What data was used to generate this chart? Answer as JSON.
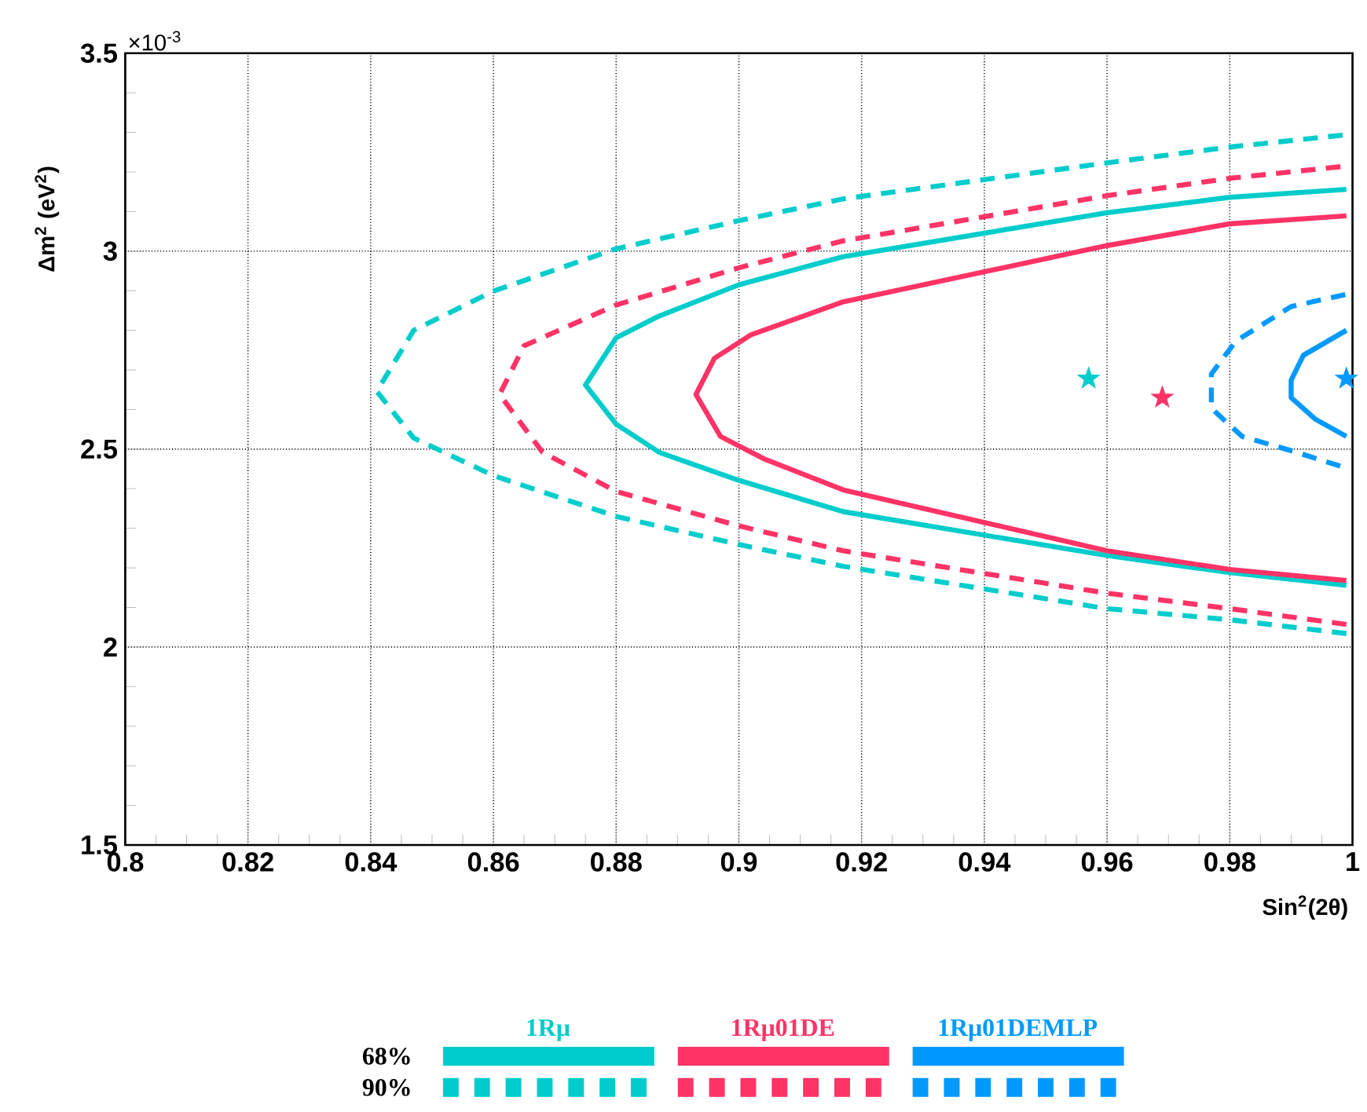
{
  "chart_data": {
    "type": "line",
    "xlabel": "Sin$^{2}$(2θ)",
    "ylabel": "Δm$^{2}$ (eV$^{2}$)",
    "annotations": [
      "×10$^{-3}$",
      "68%",
      "90%"
    ],
    "xlim": [
      0.8,
      1
    ],
    "ylim": [
      1.5,
      3.5
    ],
    "xticks": [
      0.8,
      0.82,
      0.84,
      0.86,
      0.88,
      0.9,
      0.92,
      0.94,
      0.96,
      0.98,
      1
    ],
    "yticks": [
      1.5,
      2,
      2.5,
      3,
      3.5
    ],
    "grid": true,
    "legend": "bottom",
    "series": [
      {
        "name": "1Rμ",
        "color": "#00cccc",
        "line_style": "solid",
        "x": [
          0.999,
          0.98,
          0.96,
          0.917,
          0.9,
          0.887,
          0.88,
          0.875,
          0.88,
          0.887,
          0.9,
          0.917,
          0.96,
          0.98,
          0.999
        ],
        "values": [
          2.156,
          2.188,
          2.231,
          2.342,
          2.421,
          2.492,
          2.563,
          2.662,
          2.781,
          2.836,
          2.915,
          2.986,
          3.097,
          3.136,
          3.156
        ]
      },
      {
        "color": "#00cccc",
        "line_style": "dashed",
        "x": [
          0.999,
          0.98,
          0.96,
          0.917,
          0.9,
          0.88,
          0.86,
          0.847,
          0.841,
          0.847,
          0.86,
          0.88,
          0.9,
          0.917,
          0.96,
          0.98,
          0.999
        ],
        "values": [
          2.034,
          2.069,
          2.097,
          2.204,
          2.259,
          2.33,
          2.433,
          2.528,
          2.646,
          2.8,
          2.899,
          3.006,
          3.077,
          3.132,
          3.223,
          3.263,
          3.294
        ]
      },
      {
        "name": "1Rμ01DE",
        "color": "#ff3366",
        "line_style": "solid",
        "x": [
          0.999,
          0.98,
          0.96,
          0.917,
          0.904,
          0.897,
          0.893,
          0.896,
          0.902,
          0.917,
          0.96,
          0.98,
          0.999
        ],
        "values": [
          2.168,
          2.196,
          2.243,
          2.397,
          2.476,
          2.532,
          2.638,
          2.729,
          2.789,
          2.872,
          3.014,
          3.069,
          3.089
        ]
      },
      {
        "color": "#ff3366",
        "line_style": "dashed",
        "x": [
          0.999,
          0.98,
          0.96,
          0.917,
          0.9,
          0.88,
          0.868,
          0.861,
          0.865,
          0.88,
          0.9,
          0.917,
          0.96,
          0.98,
          0.999
        ],
        "values": [
          2.057,
          2.097,
          2.136,
          2.243,
          2.306,
          2.393,
          2.492,
          2.638,
          2.761,
          2.864,
          2.958,
          3.026,
          3.14,
          3.184,
          3.215
        ]
      },
      {
        "name": "1Rμ01DEMLP",
        "color": "#0099ff",
        "line_style": "solid",
        "x": [
          0.999,
          0.994,
          0.99,
          0.99,
          0.992,
          0.999
        ],
        "values": [
          2.532,
          2.575,
          2.63,
          2.674,
          2.737,
          2.8
        ]
      },
      {
        "color": "#0099ff",
        "line_style": "dashed",
        "x": [
          0.998,
          0.99,
          0.982,
          0.977,
          0.977,
          0.981,
          0.99,
          0.999
        ],
        "values": [
          2.457,
          2.496,
          2.532,
          2.603,
          2.69,
          2.773,
          2.86,
          2.891
        ]
      },
      {
        "color": "#00cccc",
        "type": "scatter",
        "marker": "star",
        "x": [
          0.957
        ],
        "values": [
          2.678
        ]
      },
      {
        "color": "#ff3366",
        "type": "scatter",
        "marker": "star",
        "x": [
          0.969
        ],
        "values": [
          2.63
        ]
      },
      {
        "color": "#0099ff",
        "type": "scatter",
        "marker": "star",
        "x": [
          0.999
        ],
        "values": [
          2.678
        ]
      }
    ]
  }
}
